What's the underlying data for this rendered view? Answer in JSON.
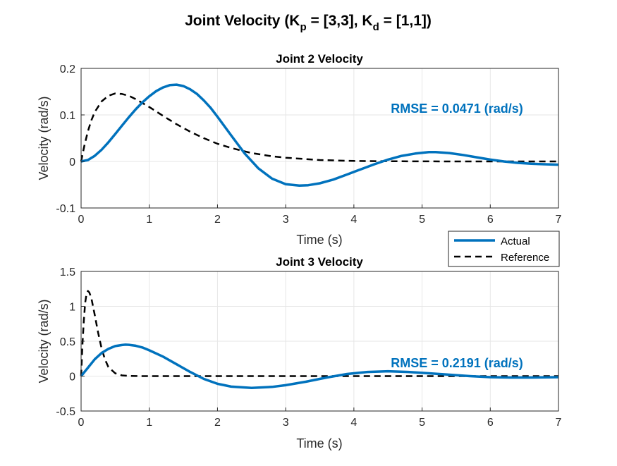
{
  "figure": {
    "title_main": "Joint Velocity (K",
    "title_sub_p": "p",
    "title_mid": " = [3,3], K",
    "title_sub_d": "d",
    "title_end": " = [1,1])"
  },
  "legend": {
    "location": "between subplots, right",
    "items": [
      {
        "label": "Actual",
        "style": "solid",
        "color": "#0072BD"
      },
      {
        "label": "Reference",
        "style": "dashed",
        "color": "#000000"
      }
    ]
  },
  "colors": {
    "actual": "#0072BD",
    "reference": "#000000",
    "grid": "#e6e6e6",
    "axis": "#262626"
  },
  "chart_data": [
    {
      "type": "line",
      "title": "Joint 2 Velocity",
      "xlabel": "Time (s)",
      "ylabel": "Velocity  (rad/s)",
      "xlim": [
        0,
        7
      ],
      "ylim": [
        -0.1,
        0.2
      ],
      "xticks": [
        0,
        1,
        2,
        3,
        4,
        5,
        6,
        7
      ],
      "xtick_labels": [
        "0",
        "1",
        "2",
        "3",
        "4",
        "5",
        "6",
        "7"
      ],
      "yticks": [
        -0.1,
        0,
        0.1,
        0.2
      ],
      "ytick_labels": [
        "-0.1",
        "0",
        "0.1",
        "0.2"
      ],
      "grid": true,
      "annotation": "RMSE = 0.0471 (rad/s)",
      "series": [
        {
          "name": "Actual",
          "x": [
            0,
            0.1,
            0.2,
            0.3,
            0.4,
            0.5,
            0.6,
            0.7,
            0.8,
            0.9,
            1.0,
            1.1,
            1.2,
            1.3,
            1.4,
            1.5,
            1.6,
            1.7,
            1.8,
            1.9,
            2.0,
            2.2,
            2.4,
            2.6,
            2.8,
            3.0,
            3.2,
            3.33,
            3.5,
            3.7,
            3.9,
            4.1,
            4.3,
            4.5,
            4.7,
            4.9,
            5.1,
            5.2,
            5.4,
            5.6,
            5.8,
            6.0,
            6.2,
            6.4,
            6.6,
            6.8,
            7.0
          ],
          "y": [
            0,
            0.003,
            0.012,
            0.025,
            0.041,
            0.059,
            0.077,
            0.095,
            0.112,
            0.127,
            0.14,
            0.151,
            0.159,
            0.164,
            0.165,
            0.162,
            0.155,
            0.145,
            0.131,
            0.115,
            0.096,
            0.056,
            0.017,
            -0.015,
            -0.037,
            -0.049,
            -0.052,
            -0.051,
            -0.047,
            -0.039,
            -0.028,
            -0.017,
            -0.006,
            0.004,
            0.012,
            0.017,
            0.02,
            0.02,
            0.018,
            0.014,
            0.009,
            0.004,
            0.0,
            -0.003,
            -0.005,
            -0.006,
            -0.007
          ]
        },
        {
          "name": "Reference",
          "x": [
            0,
            0.05,
            0.1,
            0.15,
            0.2,
            0.3,
            0.4,
            0.5,
            0.6,
            0.7,
            0.8,
            1.0,
            1.2,
            1.4,
            1.6,
            1.8,
            2.0,
            2.2,
            2.5,
            2.8,
            3.0,
            3.5,
            4.0,
            4.5,
            5.0,
            5.5,
            6.0,
            6.5,
            7.0
          ],
          "y": [
            0,
            0.035,
            0.065,
            0.088,
            0.106,
            0.129,
            0.141,
            0.146,
            0.145,
            0.141,
            0.134,
            0.117,
            0.098,
            0.08,
            0.064,
            0.05,
            0.038,
            0.029,
            0.018,
            0.011,
            0.008,
            0.003,
            0.001,
            0.0004,
            0.0001,
            0,
            0,
            0,
            0
          ]
        }
      ]
    },
    {
      "type": "line",
      "title": "Joint 3 Velocity",
      "xlabel": "Time (s)",
      "ylabel": "Velocity  (rad/s)",
      "xlim": [
        0,
        7
      ],
      "ylim": [
        -0.5,
        1.5
      ],
      "xticks": [
        0,
        1,
        2,
        3,
        4,
        5,
        6,
        7
      ],
      "xtick_labels": [
        "0",
        "1",
        "2",
        "3",
        "4",
        "5",
        "6",
        "7"
      ],
      "yticks": [
        -0.5,
        0,
        0.5,
        1,
        1.5
      ],
      "ytick_labels": [
        "-0.5",
        "0",
        "0.5",
        "1",
        "1.5"
      ],
      "grid": true,
      "annotation": "RMSE = 0.2191 (rad/s)",
      "series": [
        {
          "name": "Actual",
          "x": [
            0,
            0.05,
            0.1,
            0.2,
            0.3,
            0.4,
            0.5,
            0.6,
            0.65,
            0.7,
            0.8,
            0.9,
            1.0,
            1.2,
            1.4,
            1.6,
            1.8,
            2.0,
            2.2,
            2.5,
            2.8,
            3.0,
            3.3,
            3.6,
            3.9,
            4.2,
            4.5,
            4.8,
            5.1,
            5.4,
            5.7,
            6.0,
            6.3,
            6.6,
            7.0
          ],
          "y": [
            0,
            0.06,
            0.12,
            0.24,
            0.33,
            0.39,
            0.43,
            0.445,
            0.45,
            0.448,
            0.435,
            0.41,
            0.37,
            0.28,
            0.17,
            0.06,
            -0.04,
            -0.11,
            -0.15,
            -0.17,
            -0.155,
            -0.13,
            -0.08,
            -0.02,
            0.03,
            0.06,
            0.07,
            0.06,
            0.04,
            0.02,
            0.0,
            -0.015,
            -0.02,
            -0.02,
            -0.015
          ]
        },
        {
          "name": "Reference",
          "x": [
            0,
            0.02,
            0.04,
            0.06,
            0.08,
            0.1,
            0.12,
            0.15,
            0.2,
            0.25,
            0.3,
            0.35,
            0.4,
            0.5,
            0.6,
            0.7,
            0.8,
            1.0,
            1.5,
            2.0,
            3.0,
            4.0,
            5.0,
            6.0,
            7.0
          ],
          "y": [
            0,
            0.45,
            0.8,
            1.05,
            1.18,
            1.22,
            1.2,
            1.12,
            0.88,
            0.62,
            0.4,
            0.24,
            0.13,
            0.04,
            0.01,
            0.003,
            0.001,
            0,
            0,
            0,
            0,
            0,
            0,
            0,
            0
          ]
        }
      ]
    }
  ]
}
